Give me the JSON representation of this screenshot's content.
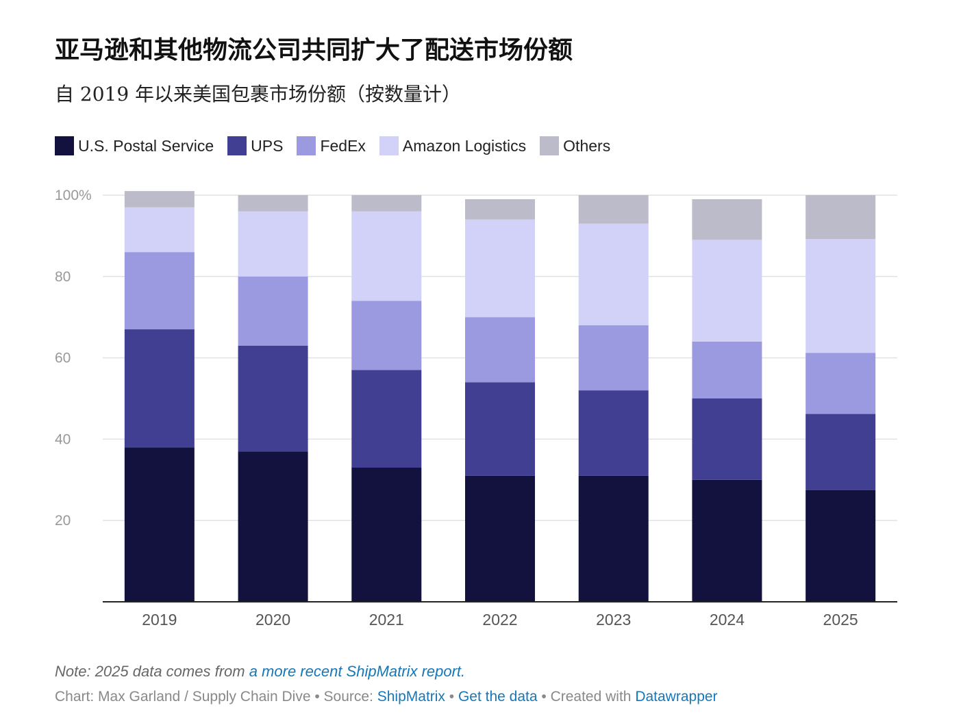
{
  "header": {
    "title": "亚马逊和其他物流公司共同扩大了配送市场份额",
    "subtitle": "自 2019 年以来美国包裹市场份额（按数量计）"
  },
  "chart_data": {
    "type": "bar",
    "stacked": true,
    "categories": [
      "2019",
      "2020",
      "2021",
      "2022",
      "2023",
      "2024",
      "2025"
    ],
    "series": [
      {
        "name": "U.S. Postal Service",
        "color": "#13123f",
        "values": [
          38,
          37,
          33,
          31,
          31,
          30,
          27.5
        ]
      },
      {
        "name": "UPS",
        "color": "#413f92",
        "values": [
          29,
          26,
          24,
          23,
          21,
          20,
          18.7
        ]
      },
      {
        "name": "FedEx",
        "color": "#9b9ae0",
        "values": [
          19,
          17,
          17,
          16,
          16,
          14,
          15
        ]
      },
      {
        "name": "Amazon Logistics",
        "color": "#d2d1f7",
        "values": [
          11,
          16,
          22,
          24,
          25,
          25,
          28
        ]
      },
      {
        "name": "Others",
        "color": "#bcbbca",
        "values": [
          4,
          4,
          4,
          5,
          7,
          10,
          10.8
        ]
      }
    ],
    "ylim": [
      0,
      100
    ],
    "yticks": [
      20,
      40,
      60,
      80,
      100
    ],
    "ytick_labels": [
      "20",
      "40",
      "60",
      "80",
      "100%"
    ],
    "legend_position": "top-left"
  },
  "footer": {
    "note_prefix": "Note: 2025 data comes from ",
    "note_link": "a more recent ShipMatrix report.",
    "credit_prefix": "Chart: Max Garland / Supply Chain Dive • Source: ",
    "source_link": "ShipMatrix",
    "sep1": " • ",
    "data_link": "Get the data",
    "sep2": " • Created with ",
    "tool_link": "Datawrapper"
  }
}
